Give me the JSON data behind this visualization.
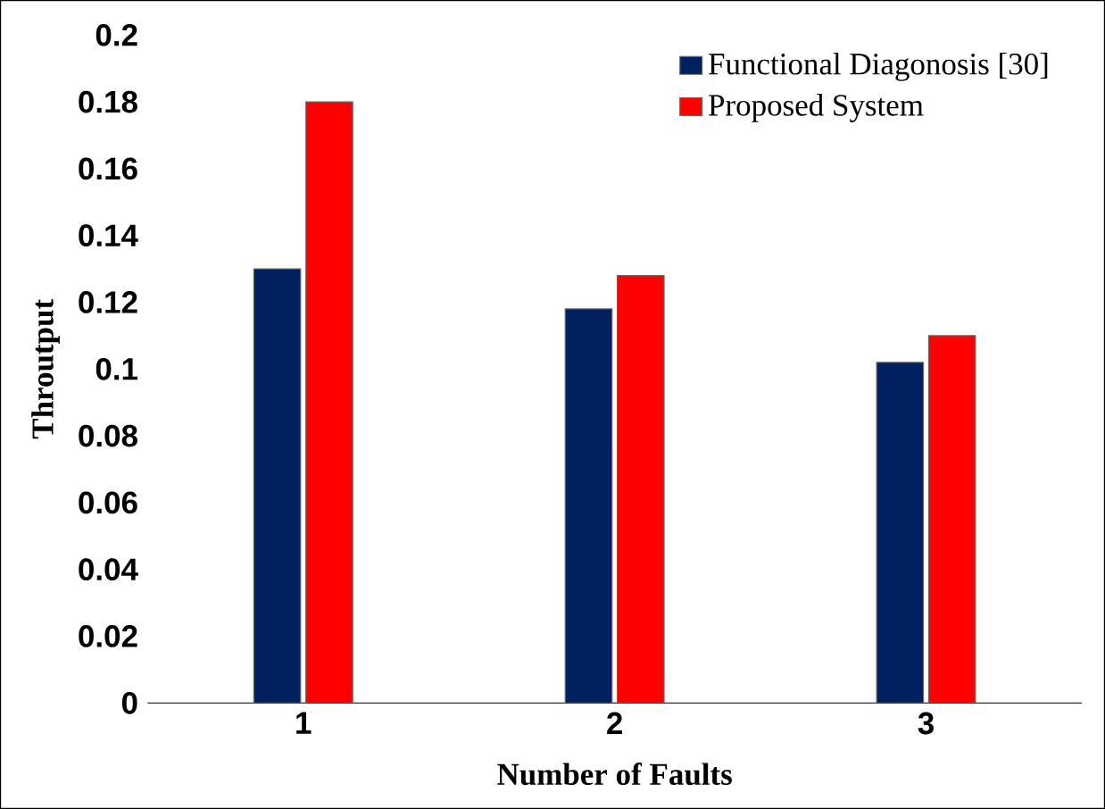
{
  "chart_data": {
    "type": "bar",
    "xlabel": "Number of Faults",
    "ylabel": "Throutput",
    "categories": [
      "1",
      "2",
      "3"
    ],
    "series": [
      {
        "name": "Functional Diagonosis [30]",
        "color": "#002060",
        "values": [
          0.13,
          0.118,
          0.102
        ]
      },
      {
        "name": "Proposed System",
        "color": "#ff0000",
        "values": [
          0.18,
          0.128,
          0.11
        ]
      }
    ],
    "ylim": [
      0,
      0.2
    ],
    "yticks": [
      0,
      0.02,
      0.04,
      0.06,
      0.08,
      0.1,
      0.12,
      0.14,
      0.16,
      0.18,
      0.2
    ],
    "grid": false,
    "legend": "top right"
  }
}
